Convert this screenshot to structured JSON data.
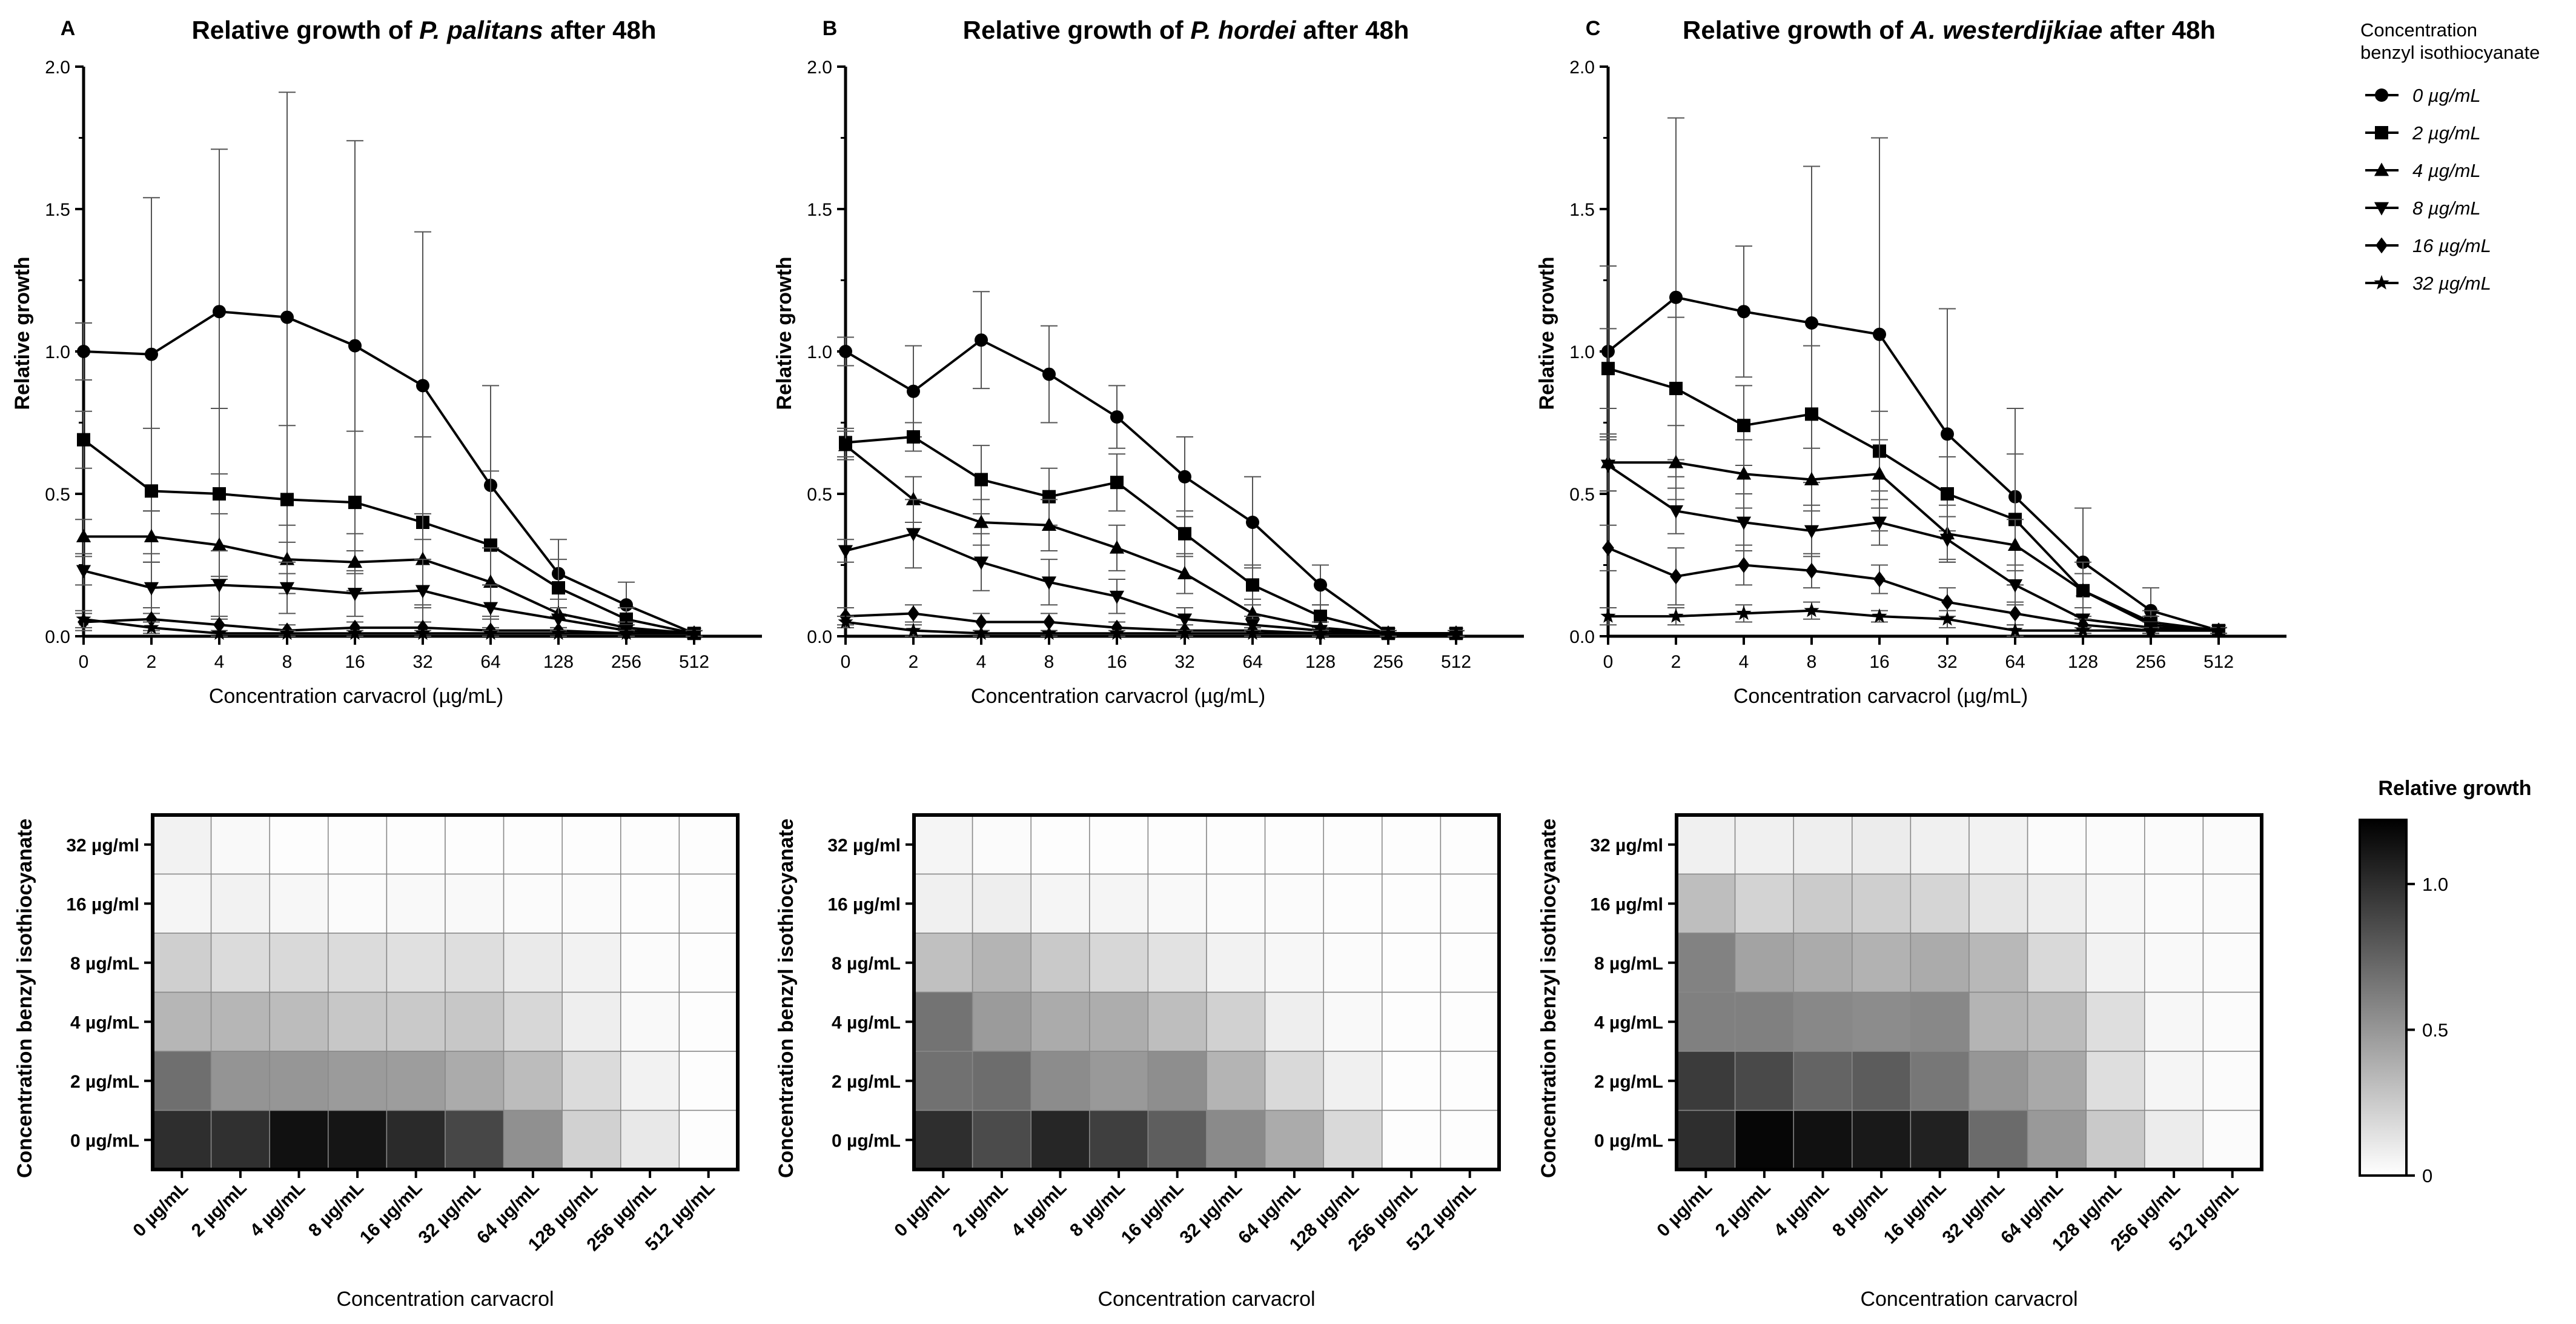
{
  "figure": {
    "background": "#ffffff",
    "ink": "#000000",
    "grid_line": "#777777"
  },
  "chart_data": [
    {
      "panel": "A",
      "type": "line",
      "title_prefix": "Relative growth of ",
      "title_species": "P. palitans",
      "title_suffix": " after 48h",
      "xlabel": "Concentration carvacrol (µg/mL)",
      "ylabel": "Relative growth",
      "categories": [
        "0",
        "2",
        "4",
        "8",
        "16",
        "32",
        "64",
        "128",
        "256",
        "512"
      ],
      "ylim": [
        0,
        2.0
      ],
      "yticks": [
        "0.0",
        "0.5",
        "1.0",
        "1.5",
        "2.0"
      ],
      "series": [
        {
          "name": "0 µg/mL",
          "marker": "circle",
          "values": [
            1.0,
            0.99,
            1.14,
            1.12,
            1.02,
            0.88,
            0.53,
            0.22,
            0.11,
            0.01
          ],
          "errors": [
            0.1,
            0.55,
            0.57,
            0.79,
            0.72,
            0.54,
            0.35,
            0.12,
            0.08,
            0.01
          ]
        },
        {
          "name": "2 µg/mL",
          "marker": "square",
          "values": [
            0.69,
            0.51,
            0.5,
            0.48,
            0.47,
            0.4,
            0.32,
            0.17,
            0.06,
            0.01
          ],
          "errors": [
            0.1,
            0.22,
            0.3,
            0.26,
            0.25,
            0.3,
            0.26,
            0.1,
            0.04,
            0.01
          ]
        },
        {
          "name": "4 µg/mL",
          "marker": "triangle",
          "values": [
            0.35,
            0.35,
            0.32,
            0.27,
            0.26,
            0.27,
            0.19,
            0.08,
            0.03,
            0.01
          ],
          "errors": [
            0.06,
            0.09,
            0.11,
            0.12,
            0.1,
            0.16,
            0.12,
            0.05,
            0.02,
            0.01
          ]
        },
        {
          "name": "8 µg/mL",
          "marker": "tri-down",
          "values": [
            0.23,
            0.17,
            0.18,
            0.17,
            0.15,
            0.16,
            0.1,
            0.06,
            0.02,
            0.01
          ],
          "errors": [
            0.05,
            0.09,
            0.12,
            0.09,
            0.08,
            0.11,
            0.08,
            0.04,
            0.02,
            0.01
          ]
        },
        {
          "name": "16 µg/mL",
          "marker": "diamond",
          "values": [
            0.05,
            0.06,
            0.04,
            0.02,
            0.03,
            0.03,
            0.02,
            0.02,
            0.01,
            0.01
          ],
          "errors": [
            0.03,
            0.04,
            0.03,
            0.02,
            0.02,
            0.02,
            0.01,
            0.01,
            0.01,
            0.01
          ]
        },
        {
          "name": "32 µg/mL",
          "marker": "star",
          "values": [
            0.06,
            0.03,
            0.01,
            0.01,
            0.01,
            0.01,
            0.01,
            0.01,
            0.01,
            0.01
          ],
          "errors": [
            0.03,
            0.02,
            0.01,
            0.01,
            0.01,
            0.01,
            0.01,
            0.01,
            0.01,
            0.01
          ]
        }
      ]
    },
    {
      "panel": "B",
      "type": "line",
      "title_prefix": "Relative growth of ",
      "title_species": "P. hordei",
      "title_suffix": " after 48h",
      "xlabel": "Concentration carvacrol (µg/mL)",
      "ylabel": "Relative growth",
      "categories": [
        "0",
        "2",
        "4",
        "8",
        "16",
        "32",
        "64",
        "128",
        "256",
        "512"
      ],
      "ylim": [
        0,
        2.0
      ],
      "yticks": [
        "0.0",
        "0.5",
        "1.0",
        "1.5",
        "2.0"
      ],
      "series": [
        {
          "name": "0 µg/mL",
          "marker": "circle",
          "values": [
            1.0,
            0.86,
            1.04,
            0.92,
            0.77,
            0.56,
            0.4,
            0.18,
            0.01,
            0.01
          ],
          "errors": [
            0.05,
            0.16,
            0.17,
            0.17,
            0.11,
            0.14,
            0.16,
            0.07,
            0.01,
            0.01
          ]
        },
        {
          "name": "2 µg/mL",
          "marker": "square",
          "values": [
            0.68,
            0.7,
            0.55,
            0.49,
            0.54,
            0.36,
            0.18,
            0.07,
            0.01,
            0.01
          ],
          "errors": [
            0.05,
            0.05,
            0.12,
            0.1,
            0.1,
            0.08,
            0.07,
            0.04,
            0.01,
            0.01
          ]
        },
        {
          "name": "4 µg/mL",
          "marker": "triangle",
          "values": [
            0.67,
            0.48,
            0.4,
            0.39,
            0.31,
            0.22,
            0.08,
            0.03,
            0.01,
            0.01
          ],
          "errors": [
            0.05,
            0.08,
            0.08,
            0.09,
            0.08,
            0.07,
            0.05,
            0.02,
            0.01,
            0.01
          ]
        },
        {
          "name": "8 µg/mL",
          "marker": "tri-down",
          "values": [
            0.3,
            0.36,
            0.26,
            0.19,
            0.14,
            0.06,
            0.04,
            0.02,
            0.01,
            0.01
          ],
          "errors": [
            0.04,
            0.12,
            0.1,
            0.08,
            0.06,
            0.04,
            0.03,
            0.01,
            0.01,
            0.01
          ]
        },
        {
          "name": "16 µg/mL",
          "marker": "diamond",
          "values": [
            0.07,
            0.08,
            0.05,
            0.05,
            0.03,
            0.02,
            0.02,
            0.01,
            0.01,
            0.01
          ],
          "errors": [
            0.03,
            0.03,
            0.03,
            0.03,
            0.02,
            0.02,
            0.01,
            0.01,
            0.01,
            0.01
          ]
        },
        {
          "name": "32 µg/mL",
          "marker": "star",
          "values": [
            0.05,
            0.02,
            0.01,
            0.01,
            0.01,
            0.01,
            0.01,
            0.01,
            0.01,
            0.01
          ],
          "errors": [
            0.02,
            0.02,
            0.01,
            0.01,
            0.01,
            0.01,
            0.01,
            0.01,
            0.01,
            0.01
          ]
        }
      ]
    },
    {
      "panel": "C",
      "type": "line",
      "title_prefix": "Relative growth of ",
      "title_species": "A. westerdijkiae",
      "title_suffix": " after 48h",
      "xlabel": "Concentration carvacrol (µg/mL)",
      "ylabel": "Relative growth",
      "categories": [
        "0",
        "2",
        "4",
        "8",
        "16",
        "32",
        "64",
        "128",
        "256",
        "512"
      ],
      "ylim": [
        0,
        2.0
      ],
      "yticks": [
        "0.0",
        "0.5",
        "1.0",
        "1.5",
        "2.0"
      ],
      "series": [
        {
          "name": "0 µg/mL",
          "marker": "circle",
          "values": [
            1.0,
            1.19,
            1.14,
            1.1,
            1.06,
            0.71,
            0.49,
            0.26,
            0.09,
            0.02
          ],
          "errors": [
            0.3,
            0.63,
            0.23,
            0.55,
            0.69,
            0.44,
            0.31,
            0.19,
            0.08,
            0.01
          ]
        },
        {
          "name": "2 µg/mL",
          "marker": "square",
          "values": [
            0.94,
            0.87,
            0.74,
            0.78,
            0.65,
            0.5,
            0.41,
            0.16,
            0.05,
            0.02
          ],
          "errors": [
            0.14,
            0.25,
            0.14,
            0.24,
            0.14,
            0.13,
            0.23,
            0.1,
            0.04,
            0.01
          ]
        },
        {
          "name": "4 µg/mL",
          "marker": "triangle",
          "values": [
            0.61,
            0.61,
            0.57,
            0.55,
            0.57,
            0.36,
            0.32,
            0.16,
            0.04,
            0.02
          ],
          "errors": [
            0.1,
            0.13,
            0.12,
            0.11,
            0.12,
            0.1,
            0.09,
            0.06,
            0.03,
            0.01
          ]
        },
        {
          "name": "8 µg/mL",
          "marker": "tri-down",
          "values": [
            0.6,
            0.44,
            0.4,
            0.37,
            0.4,
            0.34,
            0.18,
            0.06,
            0.03,
            0.02
          ],
          "errors": [
            0.09,
            0.08,
            0.1,
            0.09,
            0.08,
            0.08,
            0.07,
            0.04,
            0.02,
            0.01
          ]
        },
        {
          "name": "16 µg/mL",
          "marker": "diamond",
          "values": [
            0.31,
            0.21,
            0.25,
            0.23,
            0.2,
            0.12,
            0.08,
            0.04,
            0.02,
            0.02
          ],
          "errors": [
            0.08,
            0.1,
            0.07,
            0.06,
            0.05,
            0.05,
            0.04,
            0.02,
            0.01,
            0.01
          ]
        },
        {
          "name": "32 µg/mL",
          "marker": "star",
          "values": [
            0.07,
            0.07,
            0.08,
            0.09,
            0.07,
            0.06,
            0.02,
            0.02,
            0.02,
            0.02
          ],
          "errors": [
            0.03,
            0.03,
            0.03,
            0.03,
            0.02,
            0.03,
            0.02,
            0.01,
            0.01,
            0.01
          ]
        }
      ]
    },
    {
      "panel": "A-heatmap",
      "type": "heatmap",
      "xlabel": "Concentration carvacrol",
      "ylabel": "Concentration benzyl isothiocyanate",
      "x_categories": [
        "0 µg/mL",
        "2 µg/mL",
        "4 µg/mL",
        "8 µg/mL",
        "16 µg/mL",
        "32 µg/mL",
        "64 µg/mL",
        "128 µg/mL",
        "256 µg/mL",
        "512 µg/mL"
      ],
      "y_categories": [
        "32 µg/ml",
        "16 µg/ml",
        "8 µg/mL",
        "4 µg/mL",
        "2 µg/mL",
        "0 µg/mL"
      ],
      "values": [
        [
          0.06,
          0.03,
          0.01,
          0.01,
          0.01,
          0.01,
          0.01,
          0.01,
          0.01,
          0.01
        ],
        [
          0.05,
          0.06,
          0.04,
          0.02,
          0.03,
          0.03,
          0.02,
          0.02,
          0.01,
          0.01
        ],
        [
          0.23,
          0.17,
          0.18,
          0.17,
          0.15,
          0.16,
          0.1,
          0.06,
          0.02,
          0.01
        ],
        [
          0.35,
          0.35,
          0.32,
          0.27,
          0.26,
          0.27,
          0.19,
          0.08,
          0.03,
          0.01
        ],
        [
          0.69,
          0.51,
          0.5,
          0.48,
          0.47,
          0.4,
          0.32,
          0.17,
          0.06,
          0.01
        ],
        [
          1.0,
          0.99,
          1.14,
          1.12,
          1.02,
          0.88,
          0.53,
          0.22,
          0.11,
          0.01
        ]
      ]
    },
    {
      "panel": "B-heatmap",
      "type": "heatmap",
      "xlabel": "Concentration carvacrol",
      "ylabel": "Concentration benzyl isothiocyanate",
      "x_categories": [
        "0 µg/mL",
        "2 µg/mL",
        "4 µg/mL",
        "8 µg/mL",
        "16 µg/mL",
        "32 µg/mL",
        "64 µg/mL",
        "128 µg/mL",
        "256 µg/mL",
        "512 µg/mL"
      ],
      "y_categories": [
        "32 µg/ml",
        "16 µg/ml",
        "8 µg/mL",
        "4 µg/mL",
        "2 µg/mL",
        "0 µg/mL"
      ],
      "values": [
        [
          0.05,
          0.02,
          0.01,
          0.01,
          0.01,
          0.01,
          0.01,
          0.01,
          0.01,
          0.01
        ],
        [
          0.07,
          0.08,
          0.05,
          0.05,
          0.03,
          0.02,
          0.02,
          0.01,
          0.01,
          0.01
        ],
        [
          0.3,
          0.36,
          0.26,
          0.19,
          0.14,
          0.06,
          0.04,
          0.02,
          0.01,
          0.01
        ],
        [
          0.67,
          0.48,
          0.4,
          0.39,
          0.31,
          0.22,
          0.08,
          0.03,
          0.01,
          0.01
        ],
        [
          0.68,
          0.7,
          0.55,
          0.49,
          0.54,
          0.36,
          0.18,
          0.07,
          0.01,
          0.01
        ],
        [
          1.0,
          0.86,
          1.04,
          0.92,
          0.77,
          0.56,
          0.4,
          0.18,
          0.01,
          0.01
        ]
      ]
    },
    {
      "panel": "C-heatmap",
      "type": "heatmap",
      "xlabel": "Concentration carvacrol",
      "ylabel": "Concentration benzyl isothiocyanate",
      "x_categories": [
        "0 µg/mL",
        "2 µg/mL",
        "4 µg/mL",
        "8 µg/mL",
        "16 µg/mL",
        "32 µg/mL",
        "64 µg/mL",
        "128 µg/mL",
        "256 µg/mL",
        "512 µg/mL"
      ],
      "y_categories": [
        "32 µg/ml",
        "16 µg/ml",
        "8 µg/mL",
        "4 µg/mL",
        "2 µg/mL",
        "0 µg/mL"
      ],
      "values": [
        [
          0.07,
          0.07,
          0.08,
          0.09,
          0.07,
          0.06,
          0.02,
          0.02,
          0.02,
          0.02
        ],
        [
          0.31,
          0.21,
          0.25,
          0.23,
          0.2,
          0.12,
          0.08,
          0.04,
          0.02,
          0.02
        ],
        [
          0.6,
          0.44,
          0.4,
          0.37,
          0.4,
          0.34,
          0.18,
          0.06,
          0.03,
          0.02
        ],
        [
          0.61,
          0.61,
          0.57,
          0.55,
          0.57,
          0.36,
          0.32,
          0.16,
          0.04,
          0.02
        ],
        [
          0.94,
          0.87,
          0.74,
          0.78,
          0.65,
          0.5,
          0.41,
          0.16,
          0.05,
          0.02
        ],
        [
          1.0,
          1.19,
          1.14,
          1.1,
          1.06,
          0.71,
          0.49,
          0.26,
          0.09,
          0.02
        ]
      ]
    }
  ],
  "legend": {
    "title_line1": "Concentration",
    "title_line2": "benzyl isothiocyanate",
    "entries": [
      {
        "label": "0 µg/mL",
        "marker": "circle"
      },
      {
        "label": "2 µg/mL",
        "marker": "square"
      },
      {
        "label": "4 µg/mL",
        "marker": "triangle"
      },
      {
        "label": "8 µg/mL",
        "marker": "tri-down"
      },
      {
        "label": "16 µg/mL",
        "marker": "diamond"
      },
      {
        "label": "32 µg/mL",
        "marker": "star"
      }
    ]
  },
  "colorbar": {
    "title": "Relative growth",
    "min": 0,
    "max": 1.22,
    "ticks": [
      {
        "value": 1.0,
        "label": "1.0"
      },
      {
        "value": 0.5,
        "label": "0.5"
      },
      {
        "value": 0,
        "label": "0"
      }
    ],
    "color_low": "#ffffff",
    "color_high": "#000000"
  }
}
